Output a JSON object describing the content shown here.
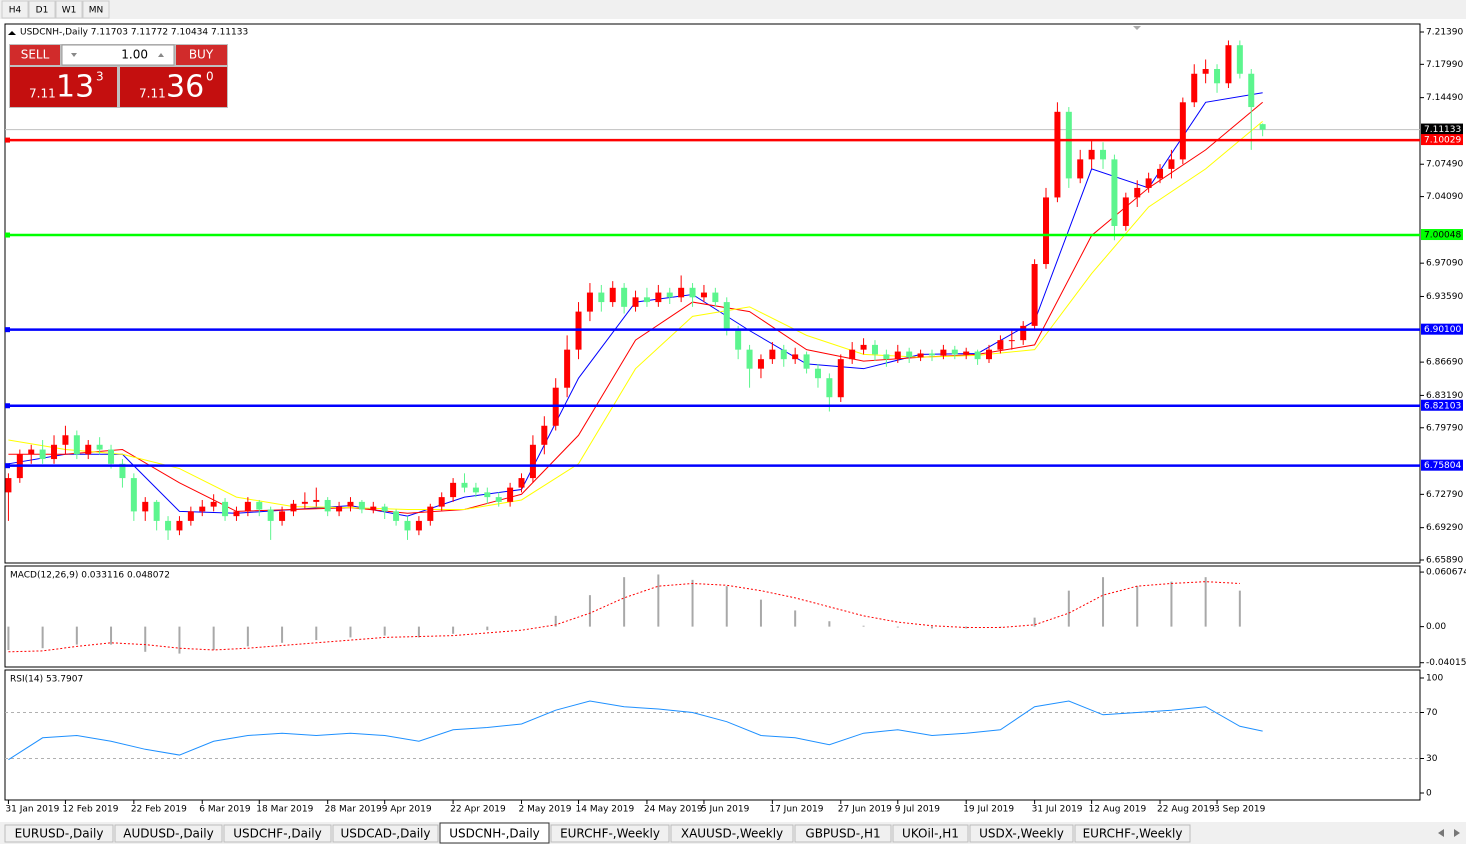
{
  "ui": {
    "timeframes": [
      "H4",
      "D1",
      "W1",
      "MN"
    ],
    "trade_panel": {
      "sell": "SELL",
      "buy": "BUY",
      "lot": "1.00",
      "bid": {
        "big": "7.11",
        "main": "13",
        "small": "3"
      },
      "ask": {
        "big": "7.11",
        "main": "36",
        "small": "0"
      }
    },
    "tabs": [
      "EURUSD-,Daily",
      "AUDUSD-,Daily",
      "USDCHF-,Daily",
      "USDCAD-,Daily",
      "USDCNH-,Daily",
      "EURCHF-,Weekly",
      "XAUUSD-,Weekly",
      "GBPUSD-,H1",
      "UKOil-,H1",
      "USDX-,Weekly",
      "EURCHF-,Weekly"
    ],
    "active_tab": 4
  },
  "chart_data": [
    {
      "type": "candlestick",
      "title": "USDCNH-,Daily  7.11703 7.11772 7.10434 7.11133",
      "up_color": "#ff0000",
      "down_color": "#5cf58e",
      "ohlc": [
        [
          6.73,
          6.75,
          6.7,
          6.745
        ],
        [
          6.745,
          6.775,
          6.74,
          6.77
        ],
        [
          6.77,
          6.78,
          6.76,
          6.775
        ],
        [
          6.775,
          6.785,
          6.76,
          6.765
        ],
        [
          6.765,
          6.79,
          6.76,
          6.78
        ],
        [
          6.78,
          6.8,
          6.77,
          6.79
        ],
        [
          6.79,
          6.795,
          6.765,
          6.77
        ],
        [
          6.77,
          6.785,
          6.765,
          6.78
        ],
        [
          6.78,
          6.788,
          6.77,
          6.775
        ],
        [
          6.775,
          6.78,
          6.755,
          6.76
        ],
        [
          6.76,
          6.765,
          6.735,
          6.745
        ],
        [
          6.745,
          6.75,
          6.7,
          6.71
        ],
        [
          6.71,
          6.725,
          6.7,
          6.72
        ],
        [
          6.72,
          6.722,
          6.69,
          6.7
        ],
        [
          6.7,
          6.705,
          6.68,
          6.69
        ],
        [
          6.69,
          6.705,
          6.685,
          6.7
        ],
        [
          6.7,
          6.715,
          6.695,
          6.71
        ],
        [
          6.71,
          6.722,
          6.705,
          6.715
        ],
        [
          6.715,
          6.728,
          6.71,
          6.72
        ],
        [
          6.72,
          6.724,
          6.7,
          6.705
        ],
        [
          6.705,
          6.715,
          6.7,
          6.71
        ],
        [
          6.71,
          6.725,
          6.705,
          6.72
        ],
        [
          6.72,
          6.722,
          6.705,
          6.712
        ],
        [
          6.712,
          6.715,
          6.68,
          6.7
        ],
        [
          6.7,
          6.715,
          6.695,
          6.71
        ],
        [
          6.71,
          6.722,
          6.705,
          6.718
        ],
        [
          6.718,
          6.73,
          6.712,
          6.72
        ],
        [
          6.72,
          6.735,
          6.715,
          6.722
        ],
        [
          6.722,
          6.725,
          6.705,
          6.71
        ],
        [
          6.71,
          6.72,
          6.705,
          6.715
        ],
        [
          6.715,
          6.725,
          6.71,
          6.72
        ],
        [
          6.72,
          6.722,
          6.708,
          6.712
        ],
        [
          6.712,
          6.72,
          6.708,
          6.715
        ],
        [
          6.715,
          6.718,
          6.702,
          6.71
        ],
        [
          6.71,
          6.712,
          6.695,
          6.7
        ],
        [
          6.7,
          6.705,
          6.68,
          6.69
        ],
        [
          6.69,
          6.705,
          6.685,
          6.7
        ],
        [
          6.7,
          6.718,
          6.695,
          6.715
        ],
        [
          6.715,
          6.73,
          6.71,
          6.725
        ],
        [
          6.725,
          6.745,
          6.72,
          6.74
        ],
        [
          6.74,
          6.75,
          6.73,
          6.735
        ],
        [
          6.735,
          6.74,
          6.725,
          6.73
        ],
        [
          6.73,
          6.735,
          6.718,
          6.725
        ],
        [
          6.725,
          6.73,
          6.715,
          6.72
        ],
        [
          6.72,
          6.74,
          6.715,
          6.735
        ],
        [
          6.735,
          6.75,
          6.73,
          6.745
        ],
        [
          6.745,
          6.79,
          6.74,
          6.78
        ],
        [
          6.78,
          6.81,
          6.77,
          6.8
        ],
        [
          6.8,
          6.85,
          6.795,
          6.84
        ],
        [
          6.84,
          6.895,
          6.83,
          6.88
        ],
        [
          6.88,
          6.93,
          6.87,
          6.92
        ],
        [
          6.92,
          6.95,
          6.91,
          6.94
        ],
        [
          6.94,
          6.948,
          6.92,
          6.93
        ],
        [
          6.93,
          6.952,
          6.925,
          6.945
        ],
        [
          6.945,
          6.95,
          6.918,
          6.925
        ],
        [
          6.925,
          6.942,
          6.92,
          6.935
        ],
        [
          6.935,
          6.945,
          6.925,
          6.93
        ],
        [
          6.93,
          6.948,
          6.925,
          6.94
        ],
        [
          6.94,
          6.945,
          6.928,
          6.935
        ],
        [
          6.935,
          6.958,
          6.93,
          6.945
        ],
        [
          6.945,
          6.95,
          6.925,
          6.935
        ],
        [
          6.935,
          6.948,
          6.93,
          6.94
        ],
        [
          6.94,
          6.945,
          6.925,
          6.93
        ],
        [
          6.93,
          6.935,
          6.895,
          6.9
        ],
        [
          6.9,
          6.905,
          6.87,
          6.88
        ],
        [
          6.88,
          6.885,
          6.84,
          6.86
        ],
        [
          6.86,
          6.875,
          6.85,
          6.87
        ],
        [
          6.87,
          6.888,
          6.865,
          6.88
        ],
        [
          6.88,
          6.885,
          6.862,
          6.87
        ],
        [
          6.87,
          6.882,
          6.865,
          6.875
        ],
        [
          6.875,
          6.878,
          6.855,
          6.86
        ],
        [
          6.86,
          6.865,
          6.84,
          6.85
        ],
        [
          6.85,
          6.855,
          6.815,
          6.83
        ],
        [
          6.83,
          6.875,
          6.825,
          6.87
        ],
        [
          6.87,
          6.888,
          6.865,
          6.88
        ],
        [
          6.88,
          6.892,
          6.875,
          6.885
        ],
        [
          6.885,
          6.89,
          6.868,
          6.875
        ],
        [
          6.875,
          6.88,
          6.862,
          6.87
        ],
        [
          6.87,
          6.885,
          6.866,
          6.878
        ],
        [
          6.878,
          6.882,
          6.866,
          6.872
        ],
        [
          6.872,
          6.88,
          6.868,
          6.876
        ],
        [
          6.876,
          6.88,
          6.868,
          6.874
        ],
        [
          6.874,
          6.885,
          6.87,
          6.88
        ],
        [
          6.88,
          6.884,
          6.87,
          6.875
        ],
        [
          6.875,
          6.882,
          6.87,
          6.878
        ],
        [
          6.878,
          6.88,
          6.864,
          6.87
        ],
        [
          6.87,
          6.885,
          6.866,
          6.88
        ],
        [
          6.88,
          6.895,
          6.876,
          6.89
        ],
        [
          6.89,
          6.9,
          6.88,
          6.89
        ],
        [
          6.89,
          6.91,
          6.885,
          6.905
        ],
        [
          6.905,
          6.975,
          6.9,
          6.97
        ],
        [
          6.97,
          7.05,
          6.965,
          7.04
        ],
        [
          7.04,
          7.14,
          7.035,
          7.13
        ],
        [
          7.13,
          7.135,
          7.05,
          7.06
        ],
        [
          7.06,
          7.09,
          7.055,
          7.08
        ],
        [
          7.08,
          7.1,
          7.07,
          7.09
        ],
        [
          7.09,
          7.098,
          7.07,
          7.08
        ],
        [
          7.08,
          7.085,
          6.995,
          7.01
        ],
        [
          7.01,
          7.045,
          7.005,
          7.04
        ],
        [
          7.04,
          7.058,
          7.03,
          7.05
        ],
        [
          7.05,
          7.066,
          7.045,
          7.06
        ],
        [
          7.06,
          7.075,
          7.055,
          7.07
        ],
        [
          7.07,
          7.09,
          7.06,
          7.08
        ],
        [
          7.08,
          7.145,
          7.075,
          7.14
        ],
        [
          7.14,
          7.18,
          7.135,
          7.17
        ],
        [
          7.17,
          7.185,
          7.16,
          7.175
        ],
        [
          7.175,
          7.18,
          7.15,
          7.16
        ],
        [
          7.16,
          7.205,
          7.155,
          7.2
        ],
        [
          7.2,
          7.205,
          7.165,
          7.17
        ],
        [
          7.17,
          7.175,
          7.09,
          7.135
        ],
        [
          7.11703,
          7.11772,
          7.10434,
          7.11133
        ]
      ],
      "series": [
        {
          "color": "#0000ff",
          "x": [
            0,
            5,
            10,
            15,
            20,
            25,
            30,
            35,
            40,
            45,
            50,
            55,
            60,
            65,
            70,
            75,
            80,
            85,
            90,
            95,
            100,
            105,
            110
          ],
          "values": [
            6.76,
            6.77,
            6.77,
            6.71,
            6.708,
            6.712,
            6.716,
            6.705,
            6.725,
            6.733,
            6.85,
            6.93,
            6.938,
            6.9,
            6.865,
            6.86,
            6.875,
            6.876,
            6.91,
            7.07,
            7.05,
            7.14,
            7.15
          ]
        },
        {
          "color": "#ff0000",
          "x": [
            0,
            5,
            10,
            15,
            20,
            25,
            30,
            35,
            40,
            45,
            50,
            55,
            60,
            65,
            70,
            75,
            80,
            85,
            90,
            95,
            100,
            105,
            110
          ],
          "values": [
            6.77,
            6.77,
            6.775,
            6.74,
            6.71,
            6.712,
            6.714,
            6.708,
            6.712,
            6.728,
            6.79,
            6.89,
            6.93,
            6.92,
            6.88,
            6.868,
            6.872,
            6.875,
            6.885,
            7.0,
            7.05,
            7.09,
            7.14
          ]
        },
        {
          "color": "#ffff00",
          "x": [
            0,
            5,
            10,
            15,
            20,
            25,
            30,
            35,
            40,
            45,
            50,
            55,
            60,
            65,
            70,
            75,
            80,
            85,
            90,
            95,
            100,
            105,
            110
          ],
          "values": [
            6.785,
            6.775,
            6.77,
            6.755,
            6.725,
            6.715,
            6.714,
            6.712,
            6.712,
            6.722,
            6.76,
            6.86,
            6.915,
            6.925,
            6.895,
            6.875,
            6.872,
            6.874,
            6.88,
            6.96,
            7.03,
            7.07,
            7.12
          ]
        }
      ],
      "hlines": [
        {
          "value": 7.10029,
          "label": "7.10029",
          "color": "#ff0000"
        },
        {
          "value": 7.00048,
          "label": "7.00048",
          "color": "#00ff00"
        },
        {
          "value": 6.901,
          "label": "6.90100",
          "color": "#0000ff"
        },
        {
          "value": 6.82103,
          "label": "6.82103",
          "color": "#0000ff"
        },
        {
          "value": 6.75804,
          "label": "6.75804",
          "color": "#0000ff"
        }
      ],
      "last_price": {
        "value": 7.11133,
        "label": "7.11133"
      },
      "xlim": [
        -0.3,
        123.8
      ],
      "ylim": [
        6.6568,
        7.2223
      ],
      "yticks": [
        {
          "value": 7.2139,
          "label": "7.21390"
        },
        {
          "value": 7.1799,
          "label": "7.17990"
        },
        {
          "value": 7.1449,
          "label": "7.14490"
        },
        {
          "value": 7.0749,
          "label": "7.07490"
        },
        {
          "value": 7.0409,
          "label": "7.04090"
        },
        {
          "value": 6.9709,
          "label": "6.97090"
        },
        {
          "value": 6.9359,
          "label": "6.93590"
        },
        {
          "value": 6.8669,
          "label": "6.86690"
        },
        {
          "value": 6.8319,
          "label": "6.83190"
        },
        {
          "value": 6.7979,
          "label": "6.79790"
        },
        {
          "value": 6.7279,
          "label": "6.72790"
        },
        {
          "value": 6.6929,
          "label": "6.69290"
        },
        {
          "value": 6.6589,
          "label": "6.65890"
        }
      ],
      "xticks": [
        {
          "value": 0,
          "label": "31 Jan 2019"
        },
        {
          "value": 5,
          "label": "12 Feb 2019"
        },
        {
          "value": 11,
          "label": "22 Feb 2019"
        },
        {
          "value": 17,
          "label": "6 Mar 2019"
        },
        {
          "value": 22,
          "label": "18 Mar 2019"
        },
        {
          "value": 28,
          "label": "28 Mar 2019"
        },
        {
          "value": 33,
          "label": "9 Apr 2019"
        },
        {
          "value": 39,
          "label": "22 Apr 2019"
        },
        {
          "value": 45,
          "label": "2 May 2019"
        },
        {
          "value": 50,
          "label": "14 May 2019"
        },
        {
          "value": 56,
          "label": "24 May 2019"
        },
        {
          "value": 61,
          "label": "5 Jun 2019"
        },
        {
          "value": 67,
          "label": "17 Jun 2019"
        },
        {
          "value": 73,
          "label": "27 Jun 2019"
        },
        {
          "value": 78,
          "label": "9 Jul 2019"
        },
        {
          "value": 84,
          "label": "19 Jul 2019"
        },
        {
          "value": 90,
          "label": "31 Jul 2019"
        },
        {
          "value": 95,
          "label": "12 Aug 2019"
        },
        {
          "value": 101,
          "label": "22 Aug 2019"
        },
        {
          "value": 106,
          "label": "3 Sep 2019"
        }
      ]
    },
    {
      "type": "macd",
      "title": "MACD(12,26,9) 0.033116 0.048072",
      "color": "#a8a8a8",
      "signal_color": "#ff0000",
      "x": [
        0,
        3,
        6,
        9,
        12,
        15,
        18,
        21,
        24,
        27,
        30,
        33,
        36,
        39,
        42,
        45,
        48,
        51,
        54,
        57,
        60,
        63,
        66,
        69,
        72,
        75,
        78,
        81,
        84,
        87,
        90,
        93,
        96,
        99,
        102,
        105,
        108
      ],
      "histogram": [
        -0.026,
        -0.024,
        -0.02,
        -0.02,
        -0.028,
        -0.03,
        -0.026,
        -0.022,
        -0.018,
        -0.015,
        -0.012,
        -0.01,
        -0.012,
        -0.008,
        -0.004,
        0.0,
        0.012,
        0.035,
        0.055,
        0.058,
        0.052,
        0.045,
        0.03,
        0.018,
        0.006,
        0.001,
        -0.001,
        -0.002,
        -0.002,
        -0.001,
        0.01,
        0.04,
        0.055,
        0.045,
        0.05,
        0.055,
        0.04
      ],
      "signal": [
        -0.028,
        -0.027,
        -0.022,
        -0.018,
        -0.02,
        -0.024,
        -0.026,
        -0.024,
        -0.021,
        -0.018,
        -0.015,
        -0.012,
        -0.011,
        -0.01,
        -0.007,
        -0.004,
        0.002,
        0.015,
        0.032,
        0.045,
        0.048,
        0.046,
        0.04,
        0.032,
        0.022,
        0.012,
        0.005,
        0.001,
        -0.001,
        -0.001,
        0.002,
        0.015,
        0.035,
        0.045,
        0.048,
        0.05,
        0.048
      ],
      "ylim": [
        -0.0438,
        0.0652
      ],
      "yticks": [
        {
          "value": 0.060674,
          "label": "0.060674"
        },
        {
          "value": 0,
          "label": "0.00"
        },
        {
          "value": -0.040152,
          "label": "-0.040152"
        }
      ]
    },
    {
      "type": "line",
      "title": "RSI(14) 53.7907",
      "color": "#1e90ff",
      "x": [
        0,
        3,
        6,
        9,
        12,
        15,
        18,
        21,
        24,
        27,
        30,
        33,
        36,
        39,
        42,
        45,
        48,
        51,
        54,
        57,
        60,
        63,
        66,
        69,
        72,
        75,
        78,
        81,
        84,
        87,
        90,
        93,
        96,
        99,
        102,
        105,
        108,
        110
      ],
      "values": [
        29,
        48,
        50,
        45,
        38,
        33,
        45,
        50,
        52,
        50,
        52,
        50,
        45,
        55,
        57,
        60,
        72,
        80,
        75,
        73,
        70,
        62,
        50,
        48,
        42,
        52,
        55,
        50,
        52,
        55,
        75,
        80,
        68,
        70,
        72,
        75,
        58,
        53.7907
      ],
      "levels": [
        70,
        30
      ],
      "ylim": [
        0,
        100
      ],
      "yticks": [
        100,
        70,
        30,
        0
      ]
    }
  ]
}
